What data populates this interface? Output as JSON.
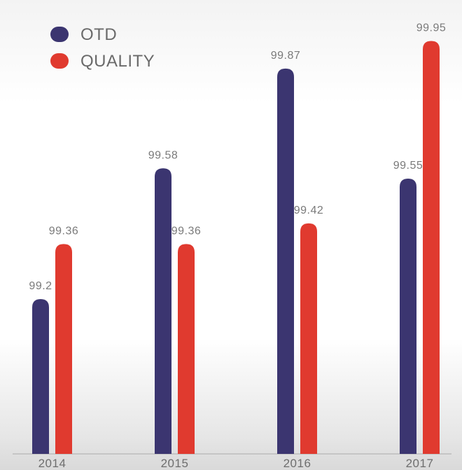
{
  "chart_data": {
    "type": "bar",
    "categories": [
      "2014",
      "2015",
      "2016",
      "2017"
    ],
    "series": [
      {
        "name": "OTD",
        "values": [
          99.2,
          99.58,
          99.87,
          99.55
        ],
        "labels": [
          "99.2",
          "99.58",
          "99.87",
          "99.55"
        ],
        "color": "#3b3570"
      },
      {
        "name": "QUALITY",
        "values": [
          99.36,
          99.36,
          99.42,
          99.95
        ],
        "labels": [
          "99.36",
          "99.36",
          "99.42",
          "99.95"
        ],
        "color": "#e03a2f"
      }
    ],
    "ylim": [
      98.75,
      100.0
    ],
    "grid": false,
    "legend_position": "top-left",
    "title": "",
    "xlabel": "",
    "ylabel": ""
  }
}
